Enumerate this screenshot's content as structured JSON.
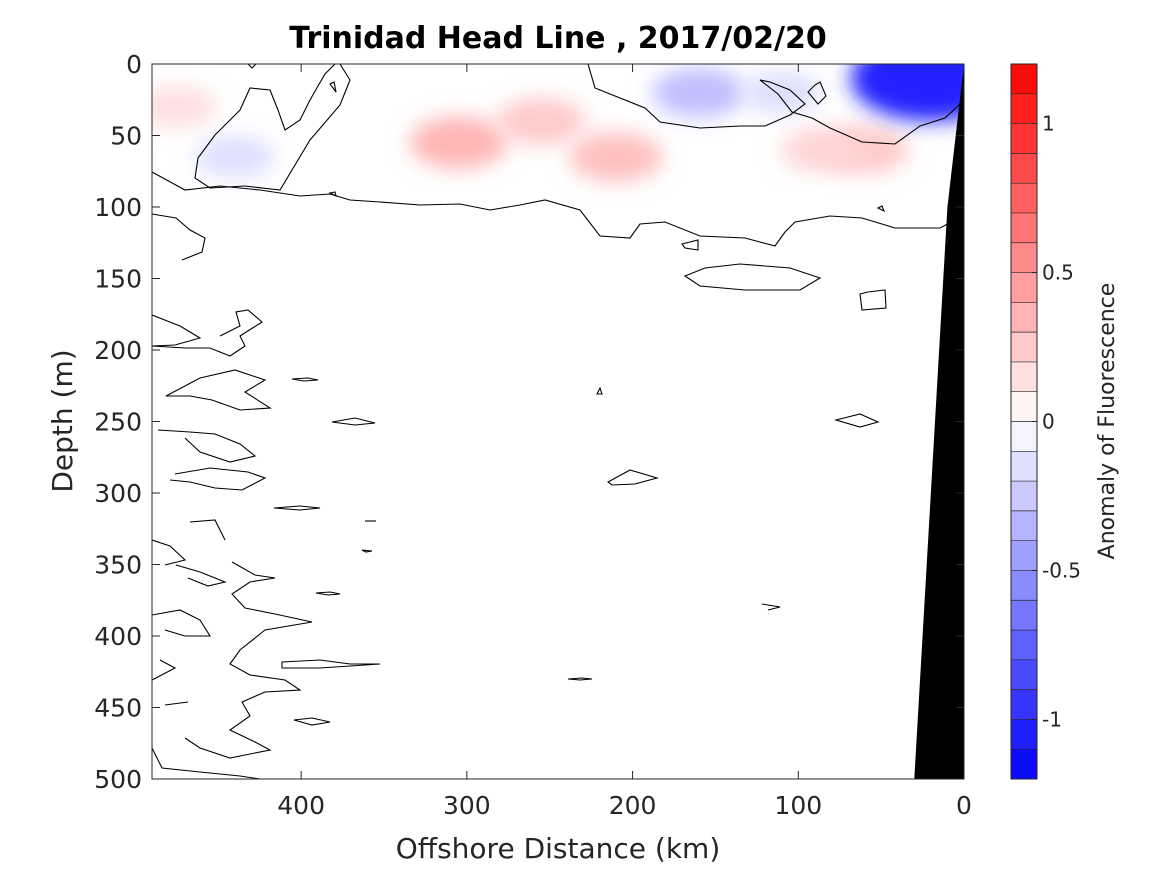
{
  "chart_data": {
    "type": "heatmap",
    "title": "Trinidad Head Line , 2017/02/20",
    "xlabel": "Offshore Distance (km)",
    "ylabel": "Depth (m)",
    "colorbar_label": "Anomaly of Fluorescence",
    "xlim": [
      490,
      0
    ],
    "ylim": [
      0,
      500
    ],
    "x_reversed": true,
    "y_reversed": true,
    "x_ticks": [
      400,
      300,
      200,
      100,
      0
    ],
    "y_ticks": [
      0,
      50,
      100,
      150,
      200,
      250,
      300,
      350,
      400,
      450,
      500
    ],
    "colorbar": {
      "range": [
        -1.2,
        1.2
      ],
      "step": 0.1,
      "ticks": [
        1,
        0.5,
        0,
        -0.5,
        -1
      ],
      "colormap": "blue-white-red",
      "color_min": "#0000ff",
      "color_zero": "#ffffff",
      "color_max": "#ff0000"
    },
    "anomaly_patches": [
      {
        "x": 475,
        "y": 30,
        "value": 0.15
      },
      {
        "x": 305,
        "y": 55,
        "value": 0.35
      },
      {
        "x": 255,
        "y": 40,
        "value": 0.25
      },
      {
        "x": 210,
        "y": 65,
        "value": 0.3
      },
      {
        "x": 60,
        "y": 60,
        "value": 0.25
      },
      {
        "x": 85,
        "y": 60,
        "value": 0.2
      },
      {
        "x": 440,
        "y": 65,
        "value": -0.15
      },
      {
        "x": 160,
        "y": 20,
        "value": -0.3
      },
      {
        "x": 110,
        "y": 20,
        "value": -0.15
      },
      {
        "x": 20,
        "y": 10,
        "value": -1.05
      }
    ],
    "bathymetry": {
      "color": "#000000",
      "boundary": [
        [
          0,
          0
        ],
        [
          0,
          500
        ],
        [
          30,
          500
        ],
        [
          10,
          100
        ],
        [
          0,
          0
        ]
      ]
    },
    "grid": false
  }
}
